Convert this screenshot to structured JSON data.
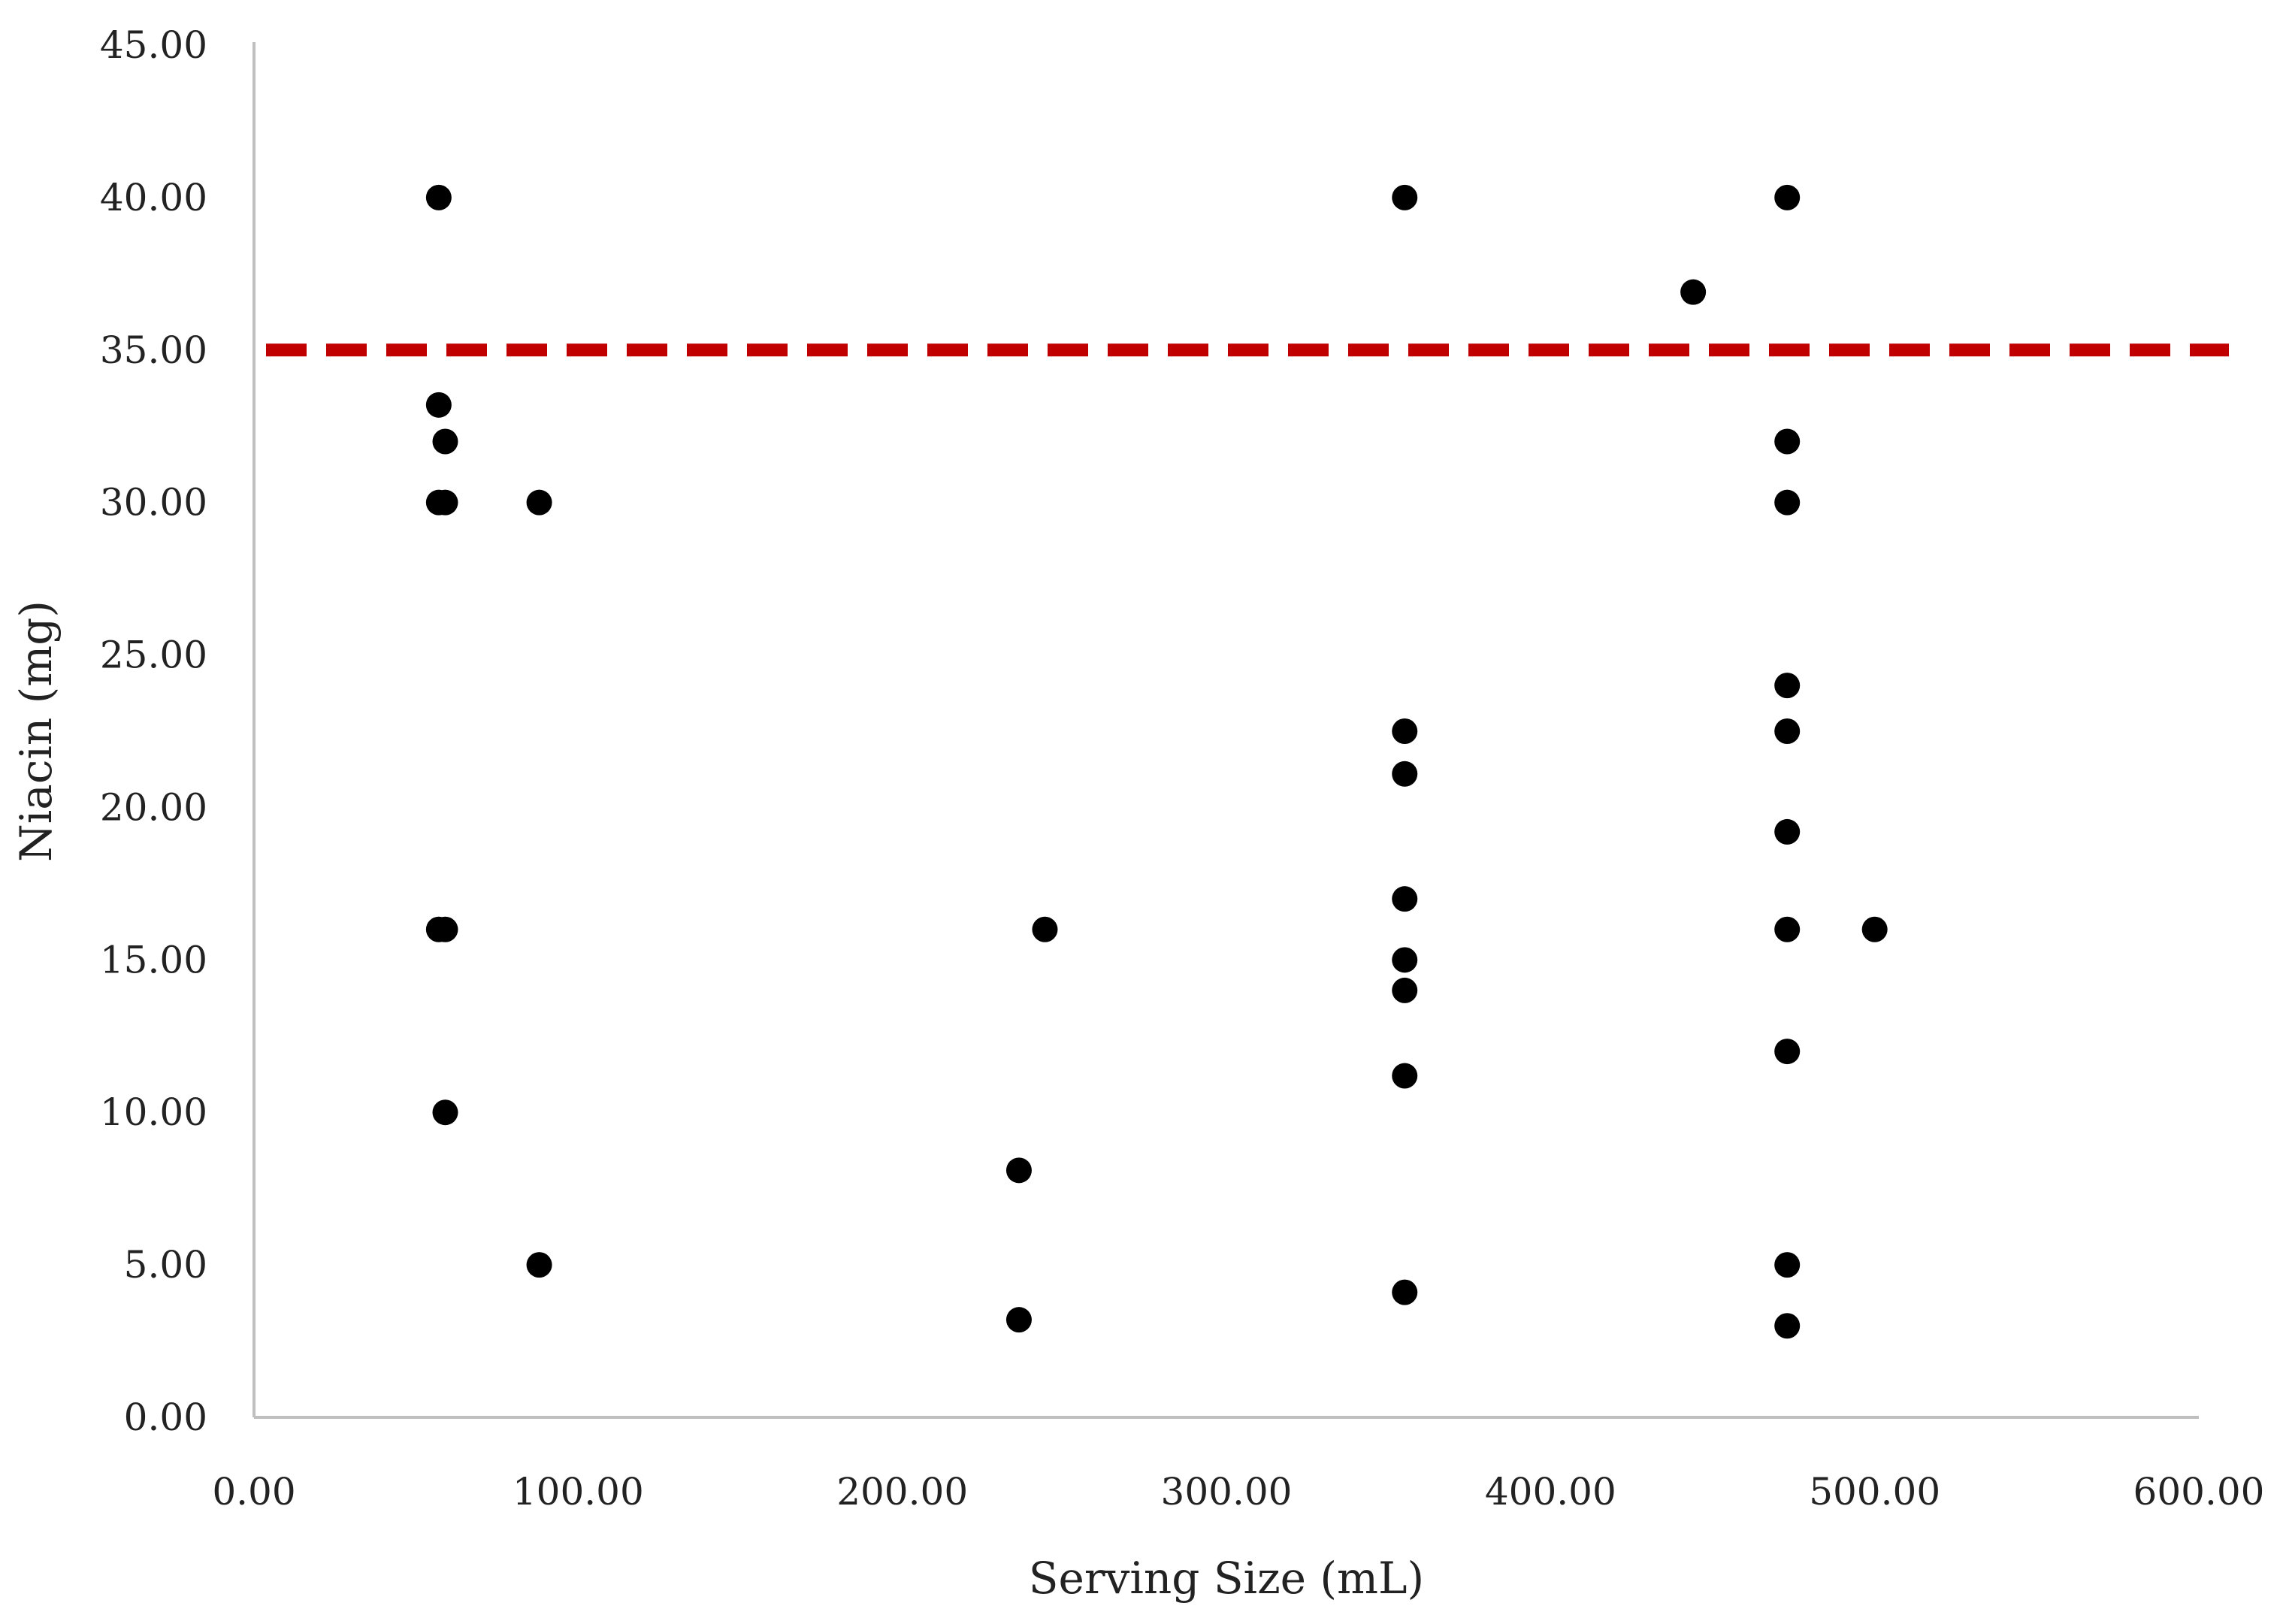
{
  "chart_data": {
    "type": "scatter",
    "title": "",
    "xlabel": "Serving Size (mL)",
    "ylabel": "Niacin (mg)",
    "xlim": [
      0,
      600
    ],
    "ylim": [
      0,
      45
    ],
    "x_ticks": [
      "0.00",
      "100.00",
      "200.00",
      "300.00",
      "400.00",
      "500.00",
      "600.00"
    ],
    "y_ticks": [
      "0.00",
      "5.00",
      "10.00",
      "15.00",
      "20.00",
      "25.00",
      "30.00",
      "35.00",
      "40.00",
      "45.00"
    ],
    "grid": false,
    "legend": "none",
    "reference_line": {
      "y": 35,
      "color": "#c00000",
      "style": "dashed"
    },
    "series": [
      {
        "color": "#000000",
        "points": [
          {
            "x": 57,
            "y": 40
          },
          {
            "x": 57,
            "y": 33.2
          },
          {
            "x": 59,
            "y": 32
          },
          {
            "x": 57,
            "y": 30
          },
          {
            "x": 59,
            "y": 30
          },
          {
            "x": 88,
            "y": 30
          },
          {
            "x": 57,
            "y": 16
          },
          {
            "x": 59,
            "y": 16
          },
          {
            "x": 59,
            "y": 10
          },
          {
            "x": 88,
            "y": 5
          },
          {
            "x": 236,
            "y": 8.1
          },
          {
            "x": 236,
            "y": 3.2
          },
          {
            "x": 244,
            "y": 16
          },
          {
            "x": 355,
            "y": 40
          },
          {
            "x": 355,
            "y": 22.5
          },
          {
            "x": 355,
            "y": 21.1
          },
          {
            "x": 355,
            "y": 17
          },
          {
            "x": 355,
            "y": 15
          },
          {
            "x": 355,
            "y": 14
          },
          {
            "x": 355,
            "y": 11.2
          },
          {
            "x": 355,
            "y": 4.1
          },
          {
            "x": 444,
            "y": 36.9
          },
          {
            "x": 473,
            "y": 40
          },
          {
            "x": 473,
            "y": 32
          },
          {
            "x": 473,
            "y": 30
          },
          {
            "x": 473,
            "y": 24
          },
          {
            "x": 473,
            "y": 22.5
          },
          {
            "x": 473,
            "y": 19.2
          },
          {
            "x": 473,
            "y": 16
          },
          {
            "x": 473,
            "y": 12
          },
          {
            "x": 473,
            "y": 5
          },
          {
            "x": 473,
            "y": 3
          },
          {
            "x": 500,
            "y": 16
          }
        ]
      }
    ]
  }
}
